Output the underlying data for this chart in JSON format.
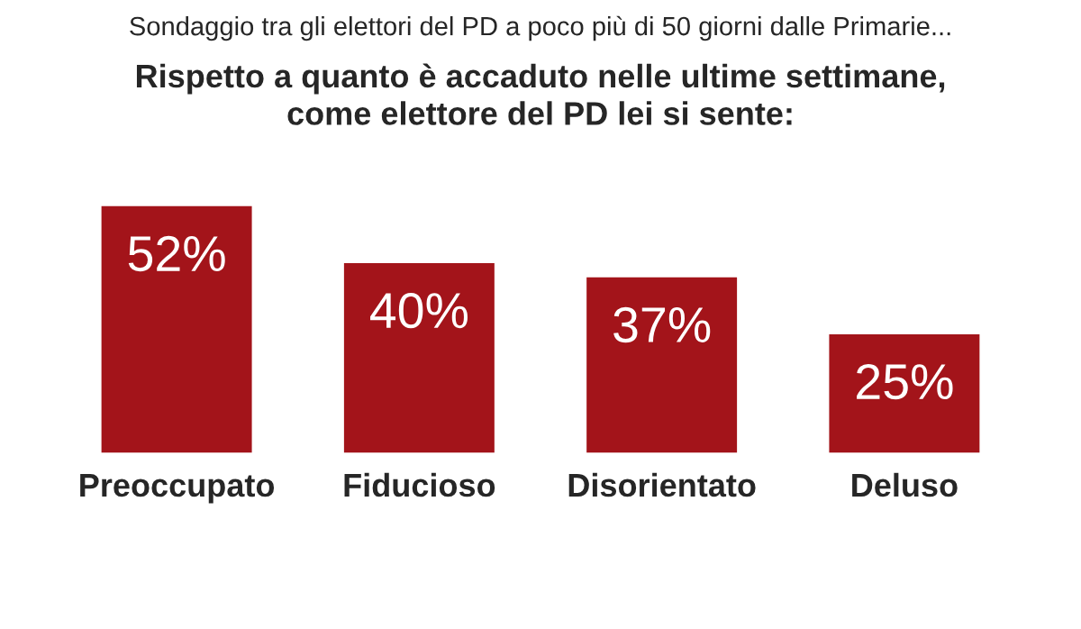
{
  "chart_data": {
    "type": "bar",
    "title": "Sondaggio tra gli elettori del PD a poco più di 50 giorni dalle Primarie...",
    "subtitle": "Rispetto a quanto è accaduto nelle ultime settimane,\ncome elettore del PD lei si sente:",
    "categories": [
      "Preoccupato",
      "Fiducioso",
      "Disorientato",
      "Deluso"
    ],
    "values": [
      52,
      40,
      37,
      25
    ],
    "value_labels": [
      "52%",
      "40%",
      "37%",
      "25%"
    ],
    "color": "#a3141a",
    "grid": false,
    "legend": false
  }
}
